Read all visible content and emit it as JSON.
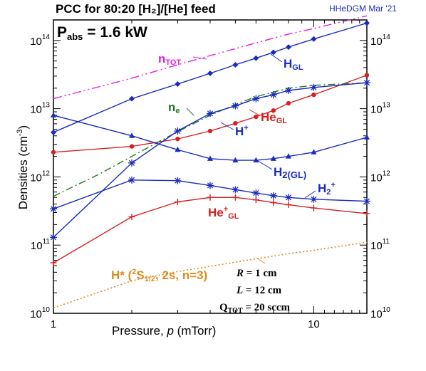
{
  "chart_data": {
    "type": "line",
    "title": "PCC for 80:20 [H₂]/[He] feed",
    "credit": "HHeDGM Mar '21",
    "power": {
      "label": "P",
      "sub": "abs",
      "value": " = 1.6 kW"
    },
    "xlabel": "Pressure, ",
    "xlabel_var": "p",
    "xlabel_unit": " (mTorr)",
    "ylabel": "Densities (cm",
    "ylabel_exp": "-3",
    "ylabel_end": ")",
    "x_scale": "log",
    "y_scale": "log",
    "xlim": [
      1,
      16
    ],
    "ylim": [
      10000000000.0,
      200000000000000.0
    ],
    "x_ticks": [
      {
        "value": 1,
        "label": "1"
      },
      {
        "value": 10,
        "label": "10"
      }
    ],
    "y_ticks": [
      {
        "value": 10000000000.0,
        "mant": "10",
        "exp": "10"
      },
      {
        "value": 100000000000.0,
        "mant": "10",
        "exp": "11"
      },
      {
        "value": 1000000000000.0,
        "mant": "10",
        "exp": "12"
      },
      {
        "value": 10000000000000.0,
        "mant": "10",
        "exp": "13"
      },
      {
        "value": 100000000000000.0,
        "mant": "10",
        "exp": "14"
      }
    ],
    "series": [
      {
        "key": "ntot",
        "color": "#e020e0",
        "dash": "12,4,2,4,2,4",
        "marker": "none",
        "x": [
          1,
          2,
          3,
          4,
          5,
          6,
          7,
          8,
          10,
          16
        ],
        "y": [
          14000000000000.0,
          28000000000000.0,
          44000000000000.0,
          60000000000000.0,
          76000000000000.0,
          92000000000000.0,
          108000000000000.0,
          124000000000000.0,
          150000000000000.0,
          230000000000000.0
        ]
      },
      {
        "key": "hgl",
        "color": "#1a2bbf",
        "dash": "",
        "marker": "diamond",
        "x": [
          1,
          2,
          3,
          4,
          5,
          6,
          7,
          8,
          10,
          16
        ],
        "y": [
          4500000000000.0,
          14000000000000.0,
          23000000000000.0,
          33000000000000.0,
          44000000000000.0,
          55000000000000.0,
          67000000000000.0,
          80000000000000.0,
          105000000000000.0,
          180000000000000.0
        ]
      },
      {
        "key": "hegl",
        "color": "#d42020",
        "dash": "",
        "marker": "circle",
        "x": [
          1,
          2,
          3,
          4,
          5,
          6,
          7,
          8,
          10,
          16
        ],
        "y": [
          2300000000000.0,
          2800000000000.0,
          3600000000000.0,
          4700000000000.0,
          6100000000000.0,
          7600000000000.0,
          9400000000000.0,
          12000000000000.0,
          16000000000000.0,
          31000000000000.0
        ]
      },
      {
        "key": "ne",
        "color": "#1e7a1e",
        "dash": "10,4,2,4",
        "marker": "none",
        "x": [
          1,
          1.5,
          2,
          3,
          4,
          5,
          6,
          7,
          8,
          10,
          16
        ],
        "y": [
          520000000000.0,
          1100000000000.0,
          2000000000000.0,
          4600000000000.0,
          8000000000000.0,
          11500000000000.0,
          15000000000000.0,
          17500000000000.0,
          20000000000000.0,
          22000000000000.0,
          24000000000000.0
        ]
      },
      {
        "key": "hplus",
        "color": "#1a2bbf",
        "dash": "",
        "marker": "asterisk",
        "x": [
          1,
          2,
          3,
          4,
          5,
          6,
          7,
          8,
          10,
          16
        ],
        "y": [
          130000000000.0,
          1600000000000.0,
          4700000000000.0,
          8500000000000.0,
          11000000000000.0,
          14000000000000.0,
          16000000000000.0,
          18500000000000.0,
          20500000000000.0,
          24000000000000.0
        ]
      },
      {
        "key": "h2gl",
        "color": "#1a2bbf",
        "dash": "",
        "marker": "triangle",
        "x": [
          1,
          2,
          3,
          4,
          5,
          6,
          7,
          8,
          10,
          16
        ],
        "y": [
          8000000000000.0,
          4000000000000.0,
          2500000000000.0,
          1850000000000.0,
          1750000000000.0,
          1750000000000.0,
          1850000000000.0,
          2000000000000.0,
          2300000000000.0,
          3800000000000.0
        ]
      },
      {
        "key": "h2plus",
        "color": "#1a2bbf",
        "dash": "",
        "marker": "asterisk",
        "x": [
          1,
          2,
          3,
          4,
          5,
          6,
          7,
          8,
          10,
          16
        ],
        "y": [
          340000000000.0,
          900000000000.0,
          880000000000.0,
          750000000000.0,
          650000000000.0,
          580000000000.0,
          530000000000.0,
          500000000000.0,
          470000000000.0,
          440000000000.0
        ]
      },
      {
        "key": "heplus",
        "color": "#d42020",
        "dash": "",
        "marker": "plus",
        "x": [
          1,
          2,
          3,
          4,
          5,
          6,
          7,
          8,
          10,
          16
        ],
        "y": [
          55000000000.0,
          260000000000.0,
          430000000000.0,
          500000000000.0,
          500000000000.0,
          460000000000.0,
          420000000000.0,
          390000000000.0,
          350000000000.0,
          290000000000.0
        ]
      },
      {
        "key": "hstar",
        "color": "#e08a1e",
        "dash": "2,3",
        "marker": "none",
        "x": [
          1,
          2,
          3,
          4,
          5,
          6,
          7,
          8,
          10,
          16
        ],
        "y": [
          12000000000.0,
          30000000000.0,
          41000000000.0,
          49000000000.0,
          56000000000.0,
          63000000000.0,
          69000000000.0,
          75000000000.0,
          84000000000.0,
          110000000000.0
        ]
      }
    ],
    "annotations": {
      "ntot": {
        "main": "n",
        "sub": "TOT"
      },
      "hgl": {
        "main": "H",
        "sub": "GL"
      },
      "ne": {
        "main": "n",
        "sub": "e"
      },
      "hegl": {
        "main": "He",
        "sub": "GL"
      },
      "hplus": {
        "main": "H",
        "sup": "+"
      },
      "h2gl": {
        "main": "H",
        "sub": "2(GL)"
      },
      "h2plus": {
        "main": "H",
        "sub": "2",
        "sup": "+"
      },
      "heplus": {
        "main": "He",
        "sup": "+",
        "sub": "GL"
      },
      "hstar": {
        "main": "H* (",
        "sup": "2",
        "mid": "S",
        "sub": "1/2",
        "end": ", 2s, n=3)"
      }
    },
    "parameters": [
      {
        "var": "R",
        "value": " = 1 cm"
      },
      {
        "var": "L",
        "value": " = 12 cm"
      },
      {
        "var": "Q",
        "sub": "TOT",
        "value": " = 20 sccm"
      }
    ]
  }
}
